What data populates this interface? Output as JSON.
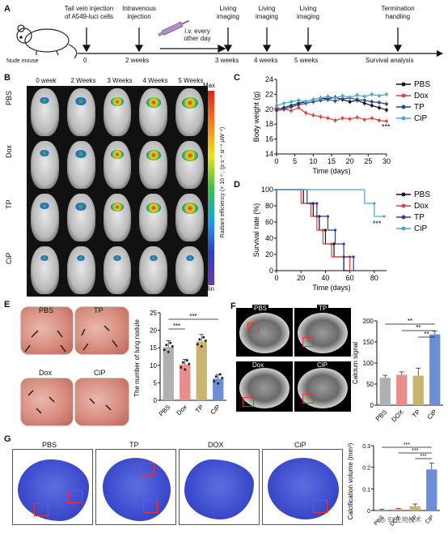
{
  "panels": {
    "A": "A",
    "B": "B",
    "C": "C",
    "D": "D",
    "E": "E",
    "F": "F",
    "G": "G"
  },
  "timeline": {
    "mouse_label": "Nude mouse",
    "steps": [
      {
        "top": "Tail vein injection\nof A549-luci cells",
        "bottom": "0"
      },
      {
        "top": "Intravenous\ninjection",
        "bottom": "2 weeks"
      },
      {
        "top": "i.v. every\nother day",
        "bottom": ""
      },
      {
        "top": "Living\nimaging",
        "bottom": "3 weeks"
      },
      {
        "top": "Living\nimaging",
        "bottom": "4 weeks"
      },
      {
        "top": "Living\nimaging",
        "bottom": "5 weeks"
      },
      {
        "top": "Termination\nhandling",
        "bottom": "Survival analysis"
      }
    ]
  },
  "imaging": {
    "columns": [
      "0 week",
      "2 Weeks",
      "3 Weeks",
      "4 Weeks",
      "5 Weeks"
    ],
    "rows": [
      "PBS",
      "Dox",
      "TP",
      "CiP"
    ],
    "colorbar_max": "Max",
    "colorbar_min": "Min",
    "colorbar_label": "Radiant efficiency (× 10 ⁸ ; (p s⁻¹ sr⁻¹ μW⁻¹)"
  },
  "colors": {
    "PBS": "#111111",
    "Dox": "#d94444",
    "TP": "#2d3e9e",
    "CiP": "#4aa6c8",
    "barPBS": "#b0b0b0",
    "barDox": "#e98c8c",
    "barTP": "#c9b56e",
    "barCiP": "#6a8fd6"
  },
  "chart_data": [
    {
      "id": "C",
      "type": "line",
      "xlabel": "Time (days)",
      "ylabel": "Body weight (g)",
      "xlim": [
        0,
        30
      ],
      "ylim": [
        14,
        24
      ],
      "xticks": [
        0,
        5,
        10,
        15,
        20,
        25,
        30
      ],
      "yticks": [
        14,
        16,
        18,
        20,
        22,
        24
      ],
      "annotation": "***",
      "legend": "top-right",
      "x": [
        0,
        2,
        4,
        6,
        8,
        10,
        12,
        14,
        16,
        18,
        20,
        22,
        24,
        26,
        28,
        30
      ],
      "series": [
        {
          "name": "PBS",
          "values": [
            20.0,
            20.2,
            20.5,
            20.8,
            21.0,
            21.3,
            21.5,
            21.4,
            21.6,
            21.3,
            21.0,
            21.2,
            20.8,
            20.5,
            20.2,
            19.9
          ]
        },
        {
          "name": "Dox",
          "values": [
            20.2,
            20.0,
            19.8,
            20.2,
            19.5,
            19.2,
            19.0,
            18.8,
            18.5,
            18.8,
            18.7,
            18.9,
            18.6,
            18.8,
            18.5,
            18.4
          ]
        },
        {
          "name": "TP",
          "values": [
            19.8,
            20.0,
            20.3,
            20.6,
            20.8,
            21.0,
            21.2,
            21.3,
            21.1,
            21.4,
            21.5,
            21.3,
            21.2,
            21.0,
            20.9,
            20.7
          ]
        },
        {
          "name": "CiP",
          "values": [
            20.5,
            20.8,
            21.0,
            21.2,
            21.0,
            21.3,
            21.5,
            21.7,
            21.5,
            21.8,
            21.6,
            21.9,
            21.7,
            22.0,
            21.8,
            22.0
          ]
        }
      ]
    },
    {
      "id": "D",
      "type": "line",
      "xlabel": "Time (days)",
      "ylabel": "Survival rate (%)",
      "xlim": [
        0,
        90
      ],
      "ylim": [
        0,
        100
      ],
      "xticks": [
        0,
        20,
        40,
        60,
        80
      ],
      "yticks": [
        0,
        20,
        40,
        60,
        80,
        100
      ],
      "annotation": "***",
      "legend": "top-right",
      "series": [
        {
          "name": "PBS",
          "steps": [
            [
              0,
              100
            ],
            [
              22,
              100
            ],
            [
              22,
              83
            ],
            [
              30,
              83
            ],
            [
              30,
              67
            ],
            [
              35,
              67
            ],
            [
              35,
              50
            ],
            [
              40,
              50
            ],
            [
              40,
              33
            ],
            [
              47,
              33
            ],
            [
              47,
              17
            ],
            [
              55,
              17
            ],
            [
              55,
              0
            ],
            [
              63,
              0
            ]
          ]
        },
        {
          "name": "Dox",
          "steps": [
            [
              0,
              100
            ],
            [
              20,
              100
            ],
            [
              20,
              83
            ],
            [
              28,
              83
            ],
            [
              28,
              67
            ],
            [
              33,
              67
            ],
            [
              33,
              50
            ],
            [
              38,
              50
            ],
            [
              38,
              33
            ],
            [
              45,
              33
            ],
            [
              45,
              17
            ],
            [
              60,
              17
            ],
            [
              60,
              0
            ],
            [
              65,
              0
            ]
          ]
        },
        {
          "name": "TP",
          "steps": [
            [
              0,
              100
            ],
            [
              25,
              100
            ],
            [
              25,
              83
            ],
            [
              33,
              83
            ],
            [
              33,
              67
            ],
            [
              42,
              67
            ],
            [
              42,
              50
            ],
            [
              48,
              50
            ],
            [
              48,
              33
            ],
            [
              55,
              33
            ],
            [
              55,
              17
            ],
            [
              63,
              17
            ],
            [
              63,
              0
            ],
            [
              66,
              0
            ]
          ]
        },
        {
          "name": "CiP",
          "steps": [
            [
              0,
              100
            ],
            [
              72,
              100
            ],
            [
              72,
              83
            ],
            [
              80,
              83
            ],
            [
              80,
              67
            ],
            [
              88,
              67
            ]
          ]
        }
      ]
    },
    {
      "id": "E",
      "type": "bar",
      "ylabel": "The number of lung nodule",
      "categories": [
        "PBS",
        "Dox",
        "TP",
        "CiP"
      ],
      "values": [
        15.2,
        10.2,
        16.8,
        6.2
      ],
      "errors": [
        1.8,
        1.5,
        2.0,
        1.2
      ],
      "ylim": [
        0,
        25
      ],
      "yticks": [
        0,
        5,
        10,
        15,
        20,
        25
      ],
      "significance": [
        "***",
        "***"
      ]
    },
    {
      "id": "F",
      "type": "bar",
      "ylabel": "Calcium signal",
      "categories": [
        "PBS",
        "DOX",
        "TP",
        "CiP"
      ],
      "values": [
        65,
        72,
        70,
        168
      ],
      "errors": [
        6,
        7,
        18,
        8
      ],
      "ylim": [
        0,
        200
      ],
      "yticks": [
        0,
        50,
        100,
        150,
        200
      ],
      "significance": [
        "**",
        "**",
        "**"
      ]
    },
    {
      "id": "G",
      "type": "bar",
      "ylabel": "Calcification volume (mm³)",
      "categories": [
        "PBS",
        "DOX",
        "TP",
        "CiP"
      ],
      "values": [
        0.004,
        0.006,
        0.02,
        0.19
      ],
      "errors": [
        0.002,
        0.003,
        0.01,
        0.03
      ],
      "ylim": [
        0,
        0.3
      ],
      "yticks": [
        0.0,
        0.1,
        0.2,
        0.3
      ],
      "significance": [
        "***",
        "***",
        "***"
      ]
    }
  ],
  "lungs_E": {
    "labels": [
      "PBS",
      "TP",
      "Dox",
      "CiP"
    ]
  },
  "ct_F": {
    "labels": [
      "PBS",
      "TP",
      "Dox",
      "CiP"
    ]
  },
  "volumes_G": {
    "labels": [
      "PBS",
      "TP",
      "DOX",
      "CiP"
    ]
  },
  "watermark": "◎ 9X生物技术"
}
